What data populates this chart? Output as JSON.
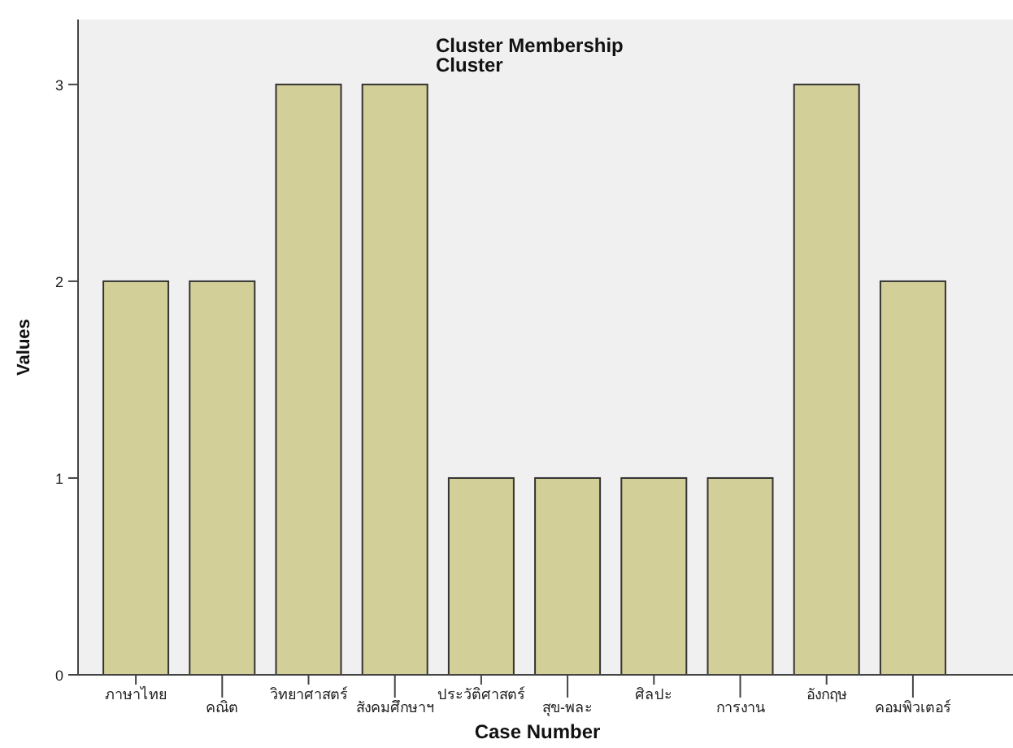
{
  "chart_data": {
    "type": "bar",
    "title": "Cluster Membership",
    "subtitle": "Cluster",
    "xlabel": "Case Number",
    "ylabel": "Values",
    "categories": [
      "ภาษาไทย",
      "คณิต",
      "วิทยาศาสตร์",
      "สังคมศึกษาฯ",
      "ประวัติศาสตร์",
      "สุข-พละ",
      "ศิลปะ",
      "การงาน",
      "อังกฤษ",
      "คอมพิวเตอร์"
    ],
    "values": [
      2,
      2,
      3,
      3,
      1,
      1,
      1,
      1,
      3,
      2
    ],
    "color": "#d3cf98",
    "ylim": [
      0,
      3.33
    ],
    "yticks": [
      0,
      1,
      2,
      3
    ]
  }
}
